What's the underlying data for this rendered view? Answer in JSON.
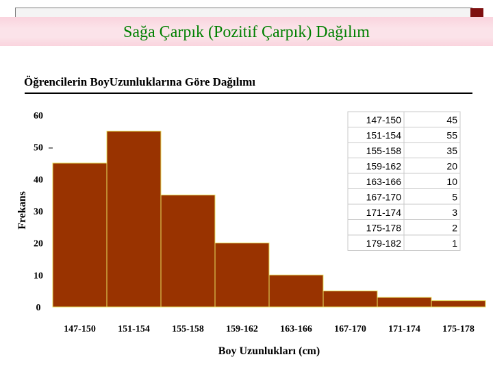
{
  "slide": {
    "title": "Sağa Çarpık (Pozitif Çarpık) Dağılım",
    "subtitle": "Öğrencilerin BoyUzunluklarına Göre Dağılımı"
  },
  "colors": {
    "bar_fill": "#993300",
    "bar_edge": "#e8e060",
    "title_text": "#008000",
    "title_band": "#fbe3e9",
    "accent": "#7e1010"
  },
  "chart_data": {
    "type": "bar",
    "title": "",
    "xlabel": "Boy Uzunlukları (cm)",
    "ylabel": "Frekans",
    "ylim": [
      0,
      60
    ],
    "yticks": [
      0,
      10,
      20,
      30,
      40,
      50,
      60
    ],
    "categories": [
      "147-150",
      "151-154",
      "155-158",
      "159-162",
      "163-166",
      "167-170",
      "171-174",
      "175-178",
      "179-182"
    ],
    "values": [
      45,
      55,
      35,
      20,
      10,
      5,
      3,
      2,
      1
    ],
    "grid": false,
    "legend": "none",
    "table": {
      "rows": [
        {
          "range": "147-150",
          "freq": "45"
        },
        {
          "range": "151-154",
          "freq": "55"
        },
        {
          "range": "155-158",
          "freq": "35"
        },
        {
          "range": "159-162",
          "freq": "20"
        },
        {
          "range": "163-166",
          "freq": "10"
        },
        {
          "range": "167-170",
          "freq": "5"
        },
        {
          "range": "171-174",
          "freq": "3"
        },
        {
          "range": "175-178",
          "freq": "2"
        },
        {
          "range": "179-182",
          "freq": "1"
        }
      ]
    }
  }
}
